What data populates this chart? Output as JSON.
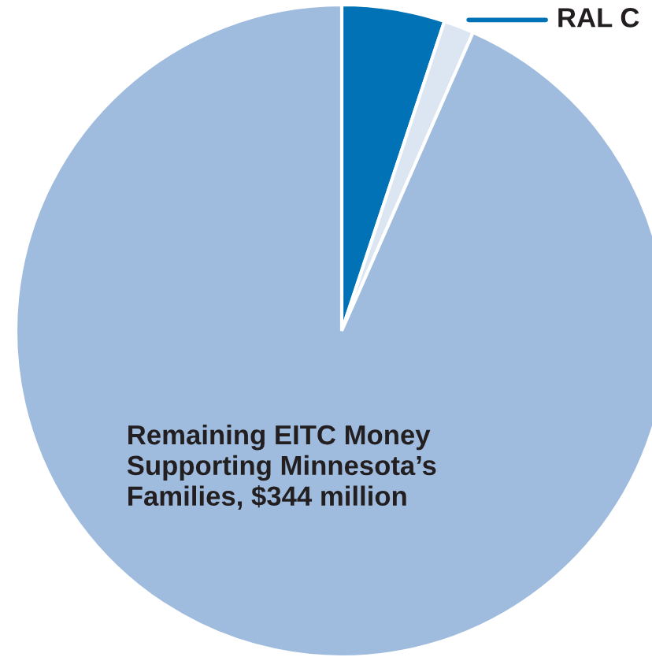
{
  "chart_data": {
    "type": "pie",
    "categories": [
      null,
      "RAL C",
      "Remaining EITC Money\nSupporting Minnesota’s\nFamilies, $344 million"
    ],
    "values": [
      5.1,
      1.5,
      93.4
    ],
    "colors": [
      "#0072b5",
      "#dce6f2",
      "#9fbcde"
    ]
  }
}
